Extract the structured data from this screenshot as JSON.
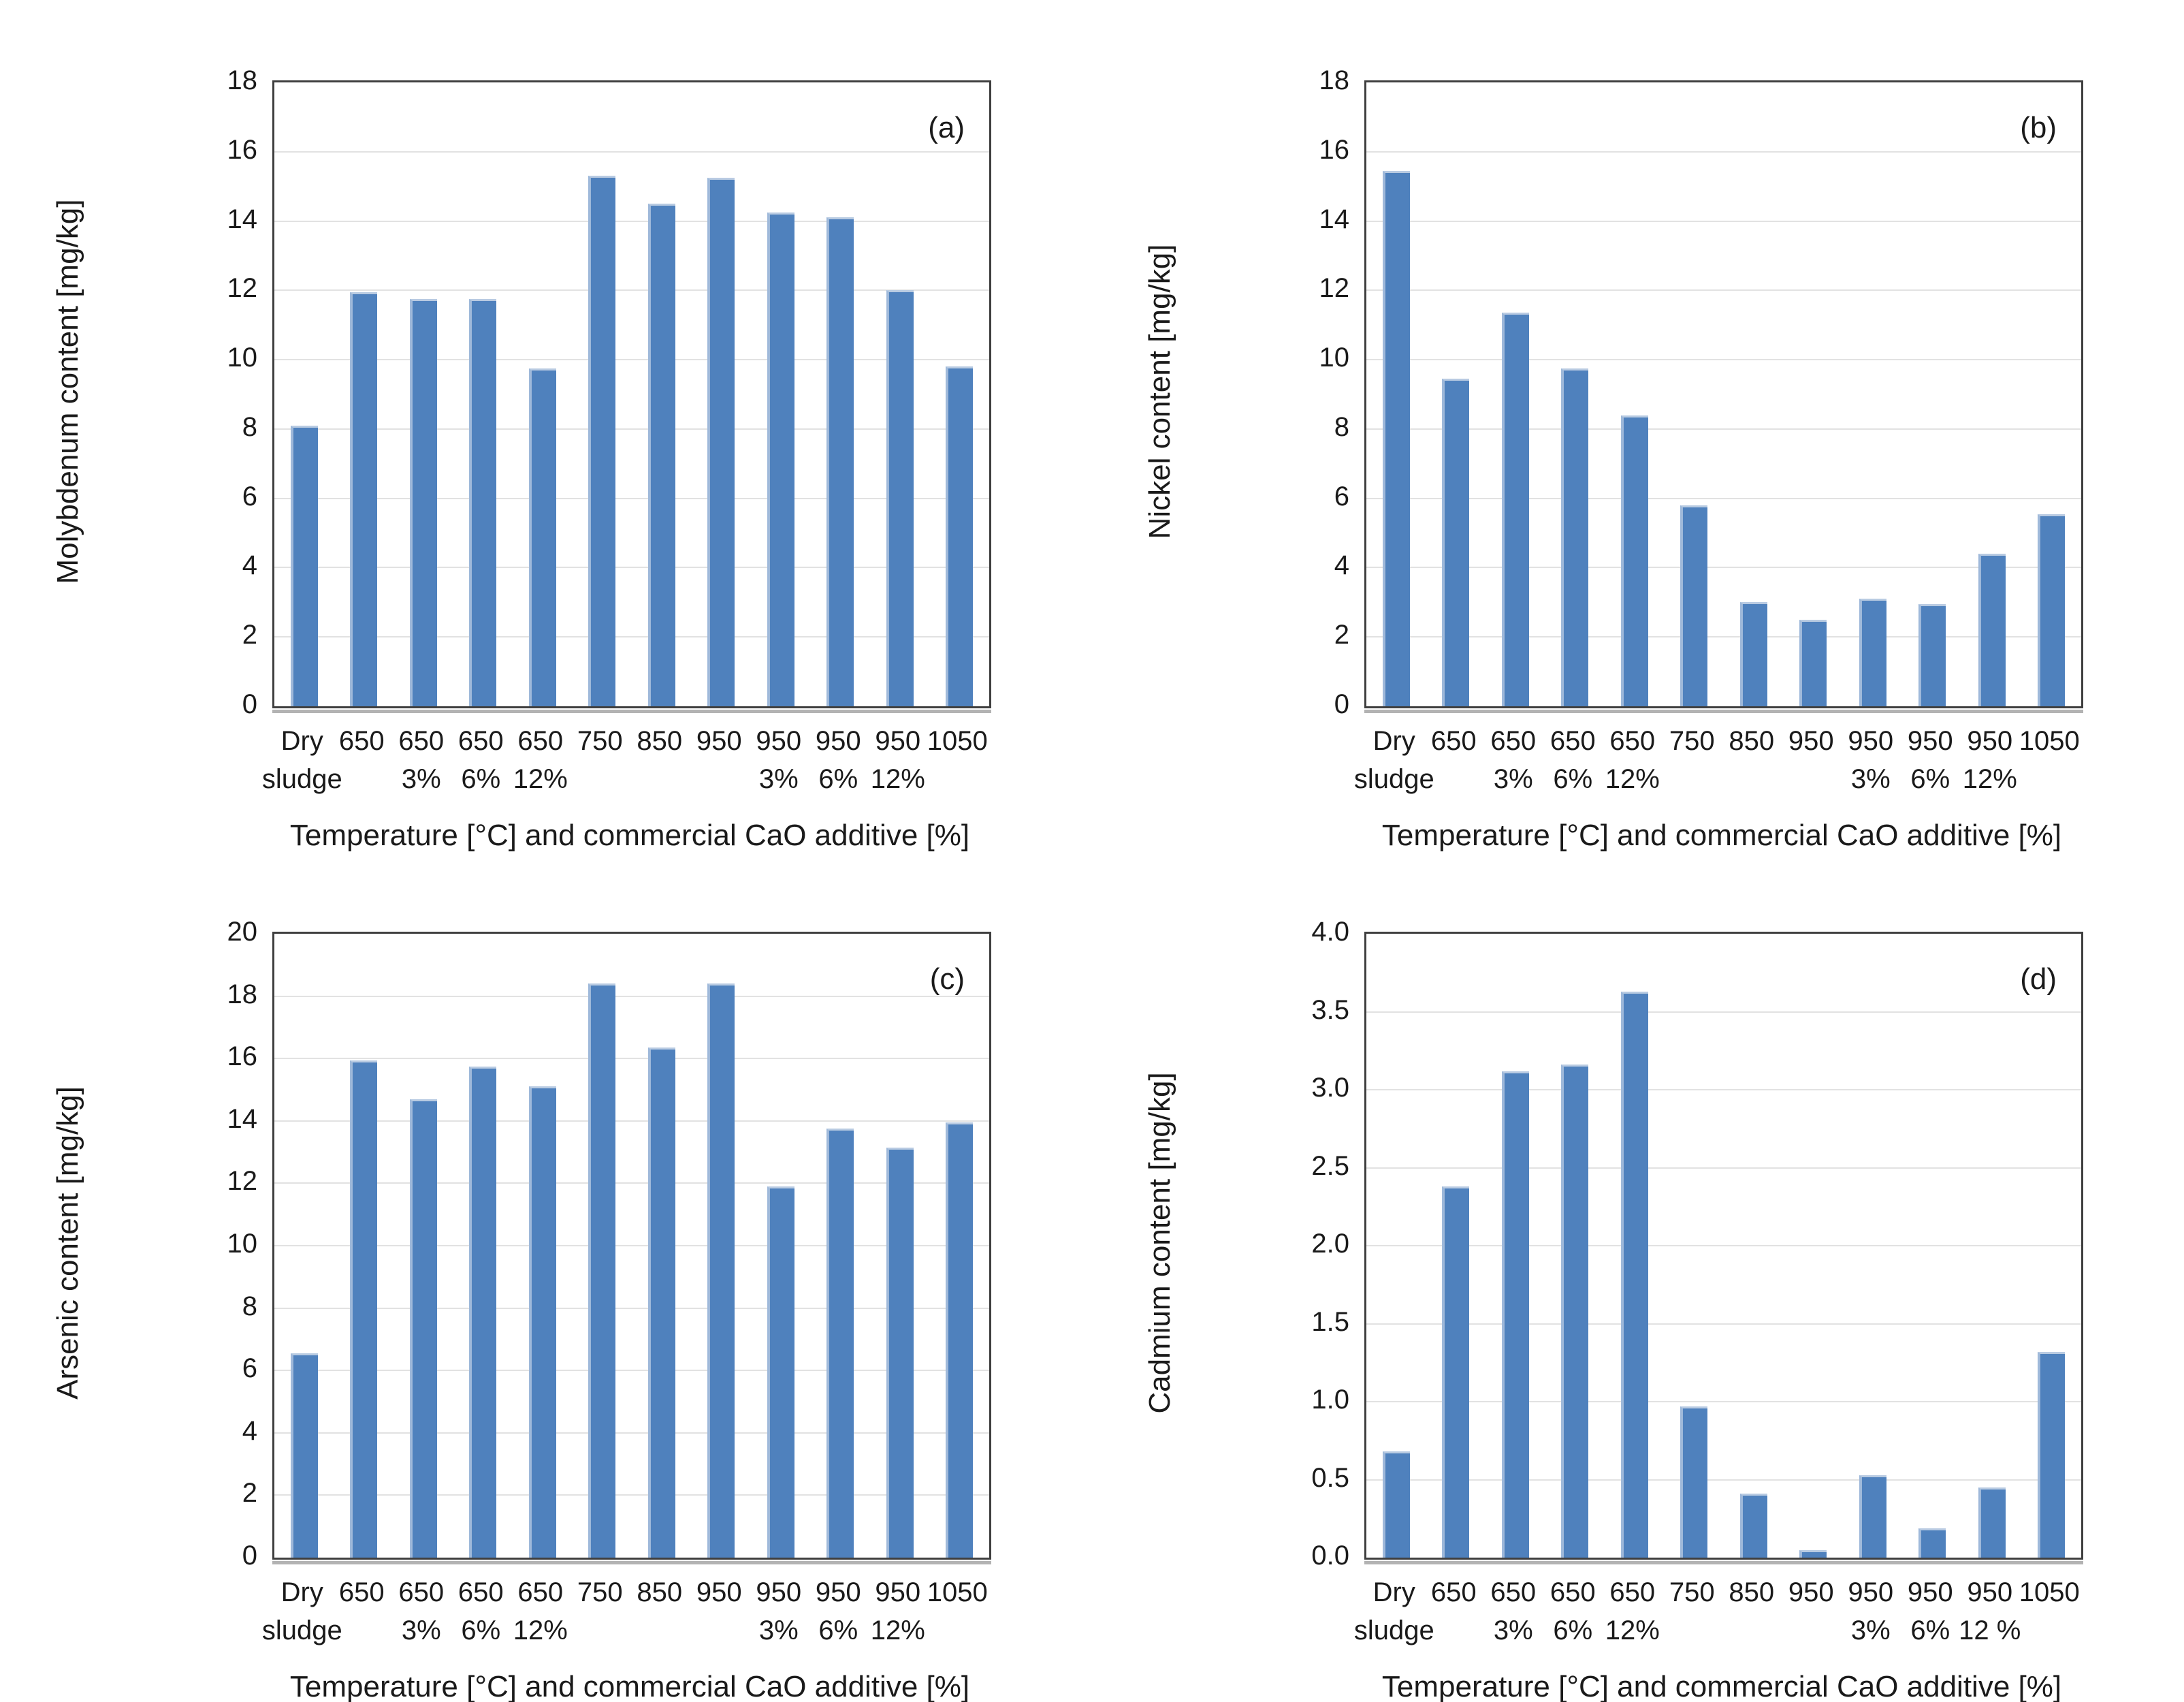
{
  "figure": {
    "bar_color": "#4f81bd",
    "bar_edge_color": "#9fb9da",
    "gridline_color": "#e2e2e2",
    "plot_border_color": "#3f3f3f",
    "axis_shadow_color": "#b3b3b3",
    "text_color": "#1a1a1a",
    "background": "#ffffff"
  },
  "chart_data": [
    {
      "type": "bar",
      "panel_label": "(a)",
      "ylabel": "Molybdenum content [mg/kg]",
      "xlabel": "Temperature [°C] and commercial CaO additive [%]",
      "ylim": [
        0,
        18
      ],
      "ytick_step": 2,
      "ytick_decimals": 0,
      "grid": true,
      "legend": "none",
      "categories": [
        [
          "Dry",
          "sludge"
        ],
        [
          "650",
          ""
        ],
        [
          "650",
          "3%"
        ],
        [
          "650",
          "6%"
        ],
        [
          "650",
          "12%"
        ],
        [
          "750",
          ""
        ],
        [
          "850",
          ""
        ],
        [
          "950",
          ""
        ],
        [
          "950",
          "3%"
        ],
        [
          "950",
          "6%"
        ],
        [
          "950",
          "12%"
        ],
        [
          "1050",
          ""
        ]
      ],
      "values": [
        8.1,
        11.95,
        11.75,
        11.75,
        9.75,
        15.3,
        14.5,
        15.25,
        14.25,
        14.1,
        12.0,
        9.8
      ]
    },
    {
      "type": "bar",
      "panel_label": "(b)",
      "ylabel": "Nickel content [mg/kg]",
      "xlabel": "Temperature [°C] and commercial CaO additive [%]",
      "ylim": [
        0,
        18
      ],
      "ytick_step": 2,
      "ytick_decimals": 0,
      "grid": true,
      "legend": "none",
      "categories": [
        [
          "Dry",
          "sludge"
        ],
        [
          "650",
          ""
        ],
        [
          "650",
          "3%"
        ],
        [
          "650",
          "6%"
        ],
        [
          "650",
          "12%"
        ],
        [
          "750",
          ""
        ],
        [
          "850",
          ""
        ],
        [
          "950",
          ""
        ],
        [
          "950",
          "3%"
        ],
        [
          "950",
          "6%"
        ],
        [
          "950",
          "12%"
        ],
        [
          "1050",
          ""
        ]
      ],
      "values": [
        15.45,
        9.45,
        11.35,
        9.75,
        8.4,
        5.8,
        3.0,
        2.5,
        3.1,
        2.95,
        4.4,
        5.55
      ]
    },
    {
      "type": "bar",
      "panel_label": "(c)",
      "ylabel": "Arsenic content [mg/kg]",
      "xlabel": "Temperature [°C] and commercial CaO additive [%]",
      "ylim": [
        0,
        20
      ],
      "ytick_step": 2,
      "ytick_decimals": 0,
      "grid": true,
      "legend": "none",
      "categories": [
        [
          "Dry",
          "sludge"
        ],
        [
          "650",
          ""
        ],
        [
          "650",
          "3%"
        ],
        [
          "650",
          "6%"
        ],
        [
          "650",
          "12%"
        ],
        [
          "750",
          ""
        ],
        [
          "850",
          ""
        ],
        [
          "950",
          ""
        ],
        [
          "950",
          "3%"
        ],
        [
          "950",
          "6%"
        ],
        [
          "950",
          "12%"
        ],
        [
          "1050",
          ""
        ]
      ],
      "values": [
        6.55,
        15.95,
        14.7,
        15.75,
        15.1,
        18.4,
        16.35,
        18.4,
        11.9,
        13.75,
        13.15,
        13.95
      ]
    },
    {
      "type": "bar",
      "panel_label": "(d)",
      "ylabel": "Cadmium content [mg/kg]",
      "xlabel": "Temperature [°C] and commercial CaO additive [%]",
      "ylim": [
        0,
        4.0
      ],
      "ytick_step": 0.5,
      "ytick_decimals": 1,
      "grid": true,
      "legend": "none",
      "categories": [
        [
          "Dry",
          "sludge"
        ],
        [
          "650",
          ""
        ],
        [
          "650",
          "3%"
        ],
        [
          "650",
          "6%"
        ],
        [
          "650",
          "12%"
        ],
        [
          "750",
          ""
        ],
        [
          "850",
          ""
        ],
        [
          "950",
          ""
        ],
        [
          "950",
          "3%"
        ],
        [
          "950",
          "6%"
        ],
        [
          "950",
          "12 %"
        ],
        [
          "1050",
          ""
        ]
      ],
      "values": [
        0.68,
        2.38,
        3.12,
        3.16,
        3.63,
        0.97,
        0.41,
        0.05,
        0.53,
        0.19,
        0.45,
        1.32
      ]
    }
  ]
}
